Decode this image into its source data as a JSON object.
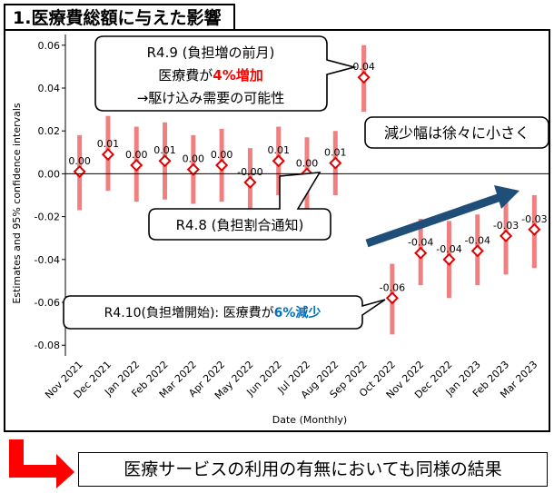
{
  "title": "1.医療費総額に与えた影響",
  "footer_text": "医療サービスの利用の有無においても同様の結果",
  "colors": {
    "ci_bar": "#f08080",
    "point": "#e00000",
    "arrow": "#1f4e79",
    "red_text": "#ff0000",
    "blue_text": "#0070c0"
  },
  "chart_data": {
    "type": "scatter",
    "xlabel": "Date (Monthly)",
    "ylabel": "Estimates and 95% confidence intervals",
    "ylim": [
      -0.085,
      0.065
    ],
    "yticks": [
      "-0.08",
      "-0.06",
      "-0.04",
      "-0.02",
      "0.00",
      "0.02",
      "0.04",
      "0.06"
    ],
    "ytick_values": [
      -0.08,
      -0.06,
      -0.04,
      -0.02,
      0.0,
      0.02,
      0.04,
      0.06
    ],
    "categories": [
      "Nov 2021",
      "Dec 2021",
      "Jan 2022",
      "Feb 2022",
      "Mar 2022",
      "Apr 2022",
      "May 2022",
      "Jun 2022",
      "Jul 2022",
      "Aug 2022",
      "Sep 2022",
      "Oct 2022",
      "Nov 2022",
      "Dec 2022",
      "Jan 2023",
      "Feb 2023",
      "Mar 2023"
    ],
    "estimates": [
      0.001,
      0.009,
      0.004,
      0.006,
      0.002,
      0.004,
      -0.004,
      0.006,
      0.0,
      0.005,
      0.045,
      -0.058,
      -0.037,
      -0.04,
      -0.036,
      -0.029,
      -0.026
    ],
    "ci_lower": [
      -0.017,
      -0.008,
      -0.013,
      -0.012,
      -0.014,
      -0.013,
      -0.019,
      -0.01,
      -0.017,
      -0.01,
      0.029,
      -0.075,
      -0.052,
      -0.058,
      -0.052,
      -0.047,
      -0.044
    ],
    "ci_upper": [
      0.018,
      0.027,
      0.022,
      0.024,
      0.018,
      0.021,
      0.012,
      0.022,
      0.017,
      0.02,
      0.06,
      -0.042,
      -0.021,
      -0.022,
      -0.019,
      -0.012,
      -0.01
    ],
    "data_labels": [
      "0.00",
      "0.01",
      "0.00",
      "0.01",
      "0.00",
      "0.00",
      "-0.00",
      "0.01",
      "0.00",
      "0.01",
      "0.04",
      "-0.06",
      "-0.04",
      "-0.04",
      "-0.04",
      "-0.03",
      "-0.03"
    ],
    "reference_line_y": 0,
    "grid": false,
    "legend": "none"
  },
  "callouts": {
    "r49_line1": "R4.9 (負担増の前月)",
    "r49_line2_prefix": "医療費が",
    "r49_line2_highlight": "4%増加",
    "r49_line3": "→駆け込み需要の可能性",
    "r48": "R4.8 (負担割合通知)",
    "r410_prefix": "R4.10(負担増開始): 医療費が",
    "r410_highlight": "6%減少",
    "decrease_note": "減少幅は徐々に小さく"
  }
}
